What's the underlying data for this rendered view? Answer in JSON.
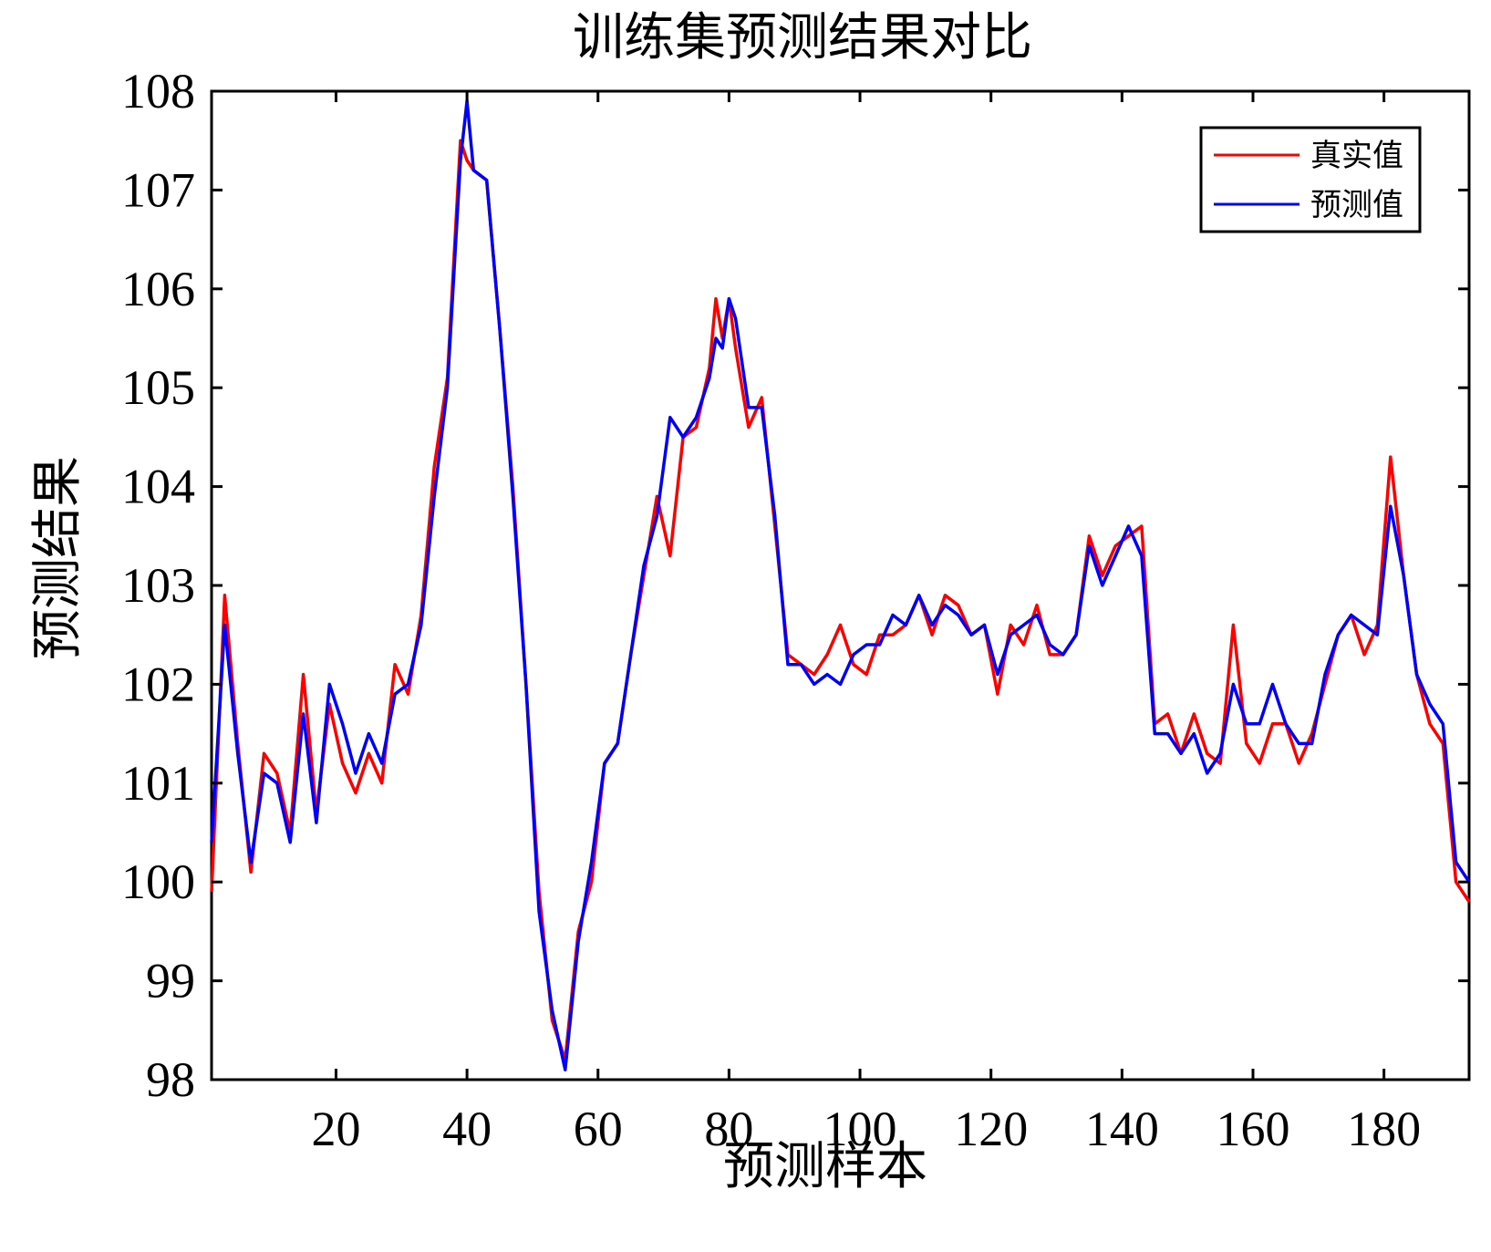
{
  "chart_data": {
    "type": "line",
    "title": "训练集预测结果对比",
    "xlabel": "预测样本",
    "ylabel": "预测结果",
    "xlim": [
      1,
      193
    ],
    "ylim": [
      98,
      108
    ],
    "xticks": [
      20,
      40,
      60,
      80,
      100,
      120,
      140,
      160,
      180
    ],
    "yticks": [
      98,
      99,
      100,
      101,
      102,
      103,
      104,
      105,
      106,
      107,
      108
    ],
    "grid": false,
    "legend_position": "top-right",
    "x": [
      1,
      3,
      5,
      7,
      9,
      11,
      13,
      15,
      17,
      19,
      21,
      23,
      25,
      27,
      29,
      31,
      33,
      35,
      37,
      39,
      40,
      41,
      43,
      45,
      47,
      49,
      51,
      53,
      55,
      57,
      59,
      61,
      63,
      65,
      67,
      69,
      71,
      73,
      75,
      77,
      78,
      79,
      80,
      81,
      83,
      85,
      87,
      89,
      91,
      93,
      95,
      97,
      99,
      101,
      103,
      105,
      107,
      109,
      111,
      113,
      115,
      117,
      119,
      121,
      123,
      125,
      127,
      129,
      131,
      133,
      135,
      137,
      139,
      141,
      143,
      145,
      147,
      149,
      151,
      153,
      155,
      157,
      159,
      161,
      163,
      165,
      167,
      169,
      171,
      173,
      175,
      177,
      179,
      181,
      183,
      185,
      187,
      189,
      191,
      193
    ],
    "series": [
      {
        "name": "真实值",
        "color": "#ff0000",
        "values": [
          99.9,
          102.9,
          101.4,
          100.1,
          101.3,
          101.1,
          100.5,
          102.1,
          100.7,
          101.8,
          101.2,
          100.9,
          101.3,
          101.0,
          102.2,
          101.9,
          102.7,
          104.2,
          105.1,
          107.5,
          107.3,
          107.2,
          107.1,
          105.6,
          104.0,
          102.0,
          99.9,
          98.6,
          98.2,
          99.5,
          100.0,
          101.2,
          101.4,
          102.3,
          103.1,
          103.9,
          103.3,
          104.5,
          104.6,
          105.2,
          105.9,
          105.5,
          105.9,
          105.4,
          104.6,
          104.9,
          103.6,
          102.3,
          102.2,
          102.1,
          102.3,
          102.6,
          102.2,
          102.1,
          102.5,
          102.5,
          102.6,
          102.9,
          102.5,
          102.9,
          102.8,
          102.5,
          102.6,
          101.9,
          102.6,
          102.4,
          102.8,
          102.3,
          102.3,
          102.5,
          103.5,
          103.1,
          103.4,
          103.5,
          103.6,
          101.6,
          101.7,
          101.3,
          101.7,
          101.3,
          101.2,
          102.6,
          101.4,
          101.2,
          101.6,
          101.6,
          101.2,
          101.5,
          102.0,
          102.5,
          102.7,
          102.3,
          102.6,
          104.3,
          103.1,
          102.1,
          101.6,
          101.4,
          100.0,
          99.8
        ]
      },
      {
        "name": "预测值",
        "color": "#0000ff",
        "values": [
          100.4,
          102.6,
          101.3,
          100.2,
          101.1,
          101.0,
          100.4,
          101.7,
          100.6,
          102.0,
          101.6,
          101.1,
          101.5,
          101.2,
          101.9,
          102.0,
          102.6,
          103.9,
          105.0,
          107.3,
          107.9,
          107.2,
          107.1,
          105.6,
          103.9,
          102.0,
          99.7,
          98.7,
          98.1,
          99.4,
          100.2,
          101.2,
          101.4,
          102.3,
          103.2,
          103.7,
          104.7,
          104.5,
          104.7,
          105.1,
          105.5,
          105.4,
          105.9,
          105.7,
          104.8,
          104.8,
          103.7,
          102.2,
          102.2,
          102.0,
          102.1,
          102.0,
          102.3,
          102.4,
          102.4,
          102.7,
          102.6,
          102.9,
          102.6,
          102.8,
          102.7,
          102.5,
          102.6,
          102.1,
          102.5,
          102.6,
          102.7,
          102.4,
          102.3,
          102.5,
          103.4,
          103.0,
          103.3,
          103.6,
          103.3,
          101.5,
          101.5,
          101.3,
          101.5,
          101.1,
          101.3,
          102.0,
          101.6,
          101.6,
          102.0,
          101.6,
          101.4,
          101.4,
          102.1,
          102.5,
          102.7,
          102.6,
          102.5,
          103.8,
          103.1,
          102.1,
          101.8,
          101.6,
          100.2,
          100.0
        ]
      }
    ]
  }
}
